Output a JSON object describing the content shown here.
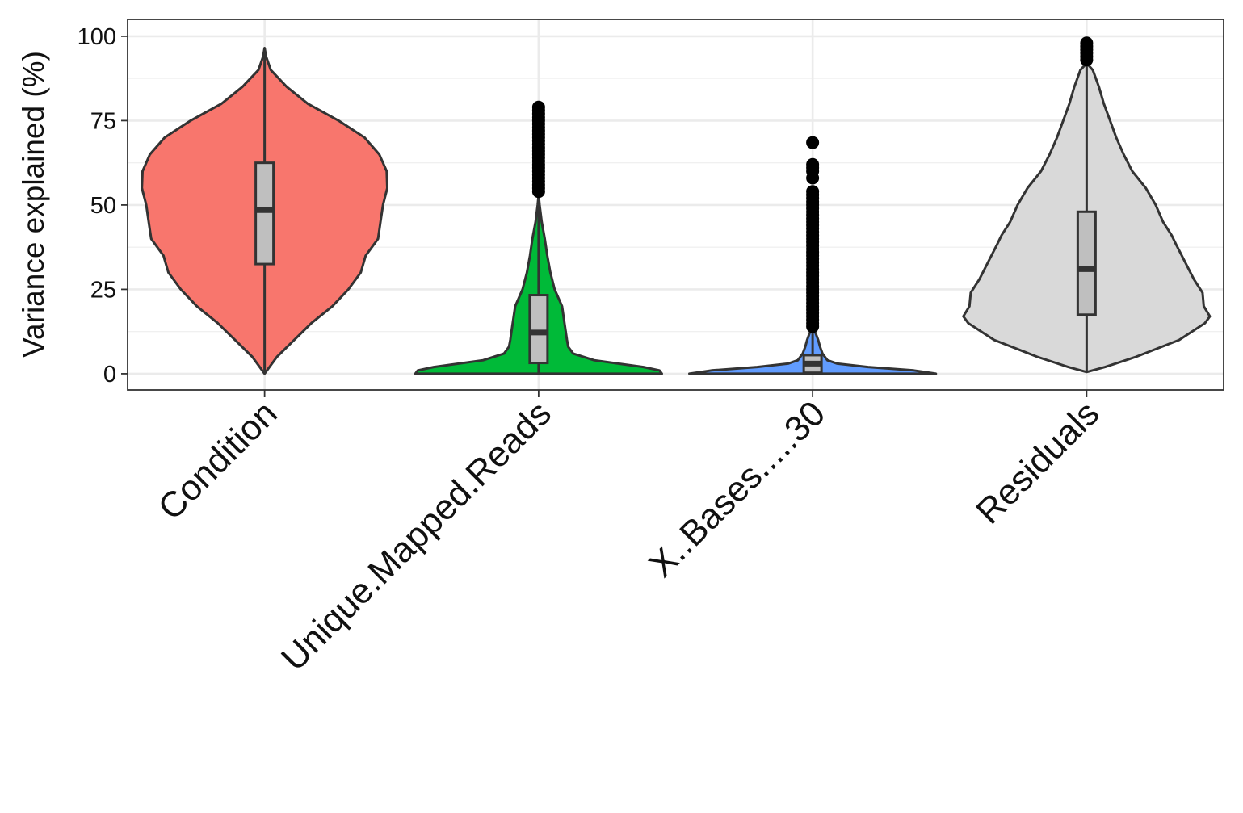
{
  "chart_data": {
    "type": "violin",
    "ylabel": "Variance explained (%)",
    "ylim": [
      -4.8,
      105
    ],
    "yticks": [
      0,
      25,
      50,
      75,
      100
    ],
    "grid": true,
    "legend": "none",
    "categories": [
      {
        "name": "Condition",
        "color": "#F8766D",
        "box": {
          "min": 0,
          "q1": 32.5,
          "median": 48.5,
          "q3": 62.5,
          "max": 96.5
        },
        "density": [
          [
            0,
            0
          ],
          [
            5,
            0.1
          ],
          [
            10,
            0.24
          ],
          [
            15,
            0.38
          ],
          [
            20,
            0.55
          ],
          [
            25,
            0.68
          ],
          [
            30,
            0.78
          ],
          [
            35,
            0.82
          ],
          [
            40,
            0.92
          ],
          [
            45,
            0.94
          ],
          [
            50,
            0.96
          ],
          [
            55,
            0.995
          ],
          [
            60,
            0.99
          ],
          [
            65,
            0.93
          ],
          [
            70,
            0.81
          ],
          [
            75,
            0.6
          ],
          [
            80,
            0.35
          ],
          [
            85,
            0.18
          ],
          [
            90,
            0.05
          ],
          [
            94,
            0.012
          ],
          [
            96.5,
            0
          ]
        ],
        "outliers": []
      },
      {
        "name": "Unique.Mapped.Reads",
        "color": "#00BA38",
        "box": {
          "min": 0,
          "q1": 3.2,
          "median": 12.2,
          "q3": 23.3,
          "max": 53
        },
        "density": [
          [
            0,
            1.0
          ],
          [
            1,
            0.98
          ],
          [
            2,
            0.85
          ],
          [
            4,
            0.45
          ],
          [
            6,
            0.28
          ],
          [
            8,
            0.24
          ],
          [
            10,
            0.23
          ],
          [
            15,
            0.21
          ],
          [
            20,
            0.19
          ],
          [
            25,
            0.13
          ],
          [
            30,
            0.095
          ],
          [
            35,
            0.07
          ],
          [
            40,
            0.05
          ],
          [
            45,
            0.025
          ],
          [
            50,
            0.008
          ],
          [
            53,
            0
          ]
        ],
        "outliers": [
          54,
          55,
          56,
          57,
          58,
          59,
          60,
          61,
          62,
          63,
          64,
          65,
          66,
          67,
          68,
          69,
          70,
          71,
          72,
          73,
          74,
          75,
          76,
          77,
          78,
          79
        ]
      },
      {
        "name": "X..Bases.....30",
        "color": "#619CFF",
        "box": {
          "min": 0,
          "q1": 0.3,
          "median": 3.0,
          "q3": 5.5,
          "max": 13
        },
        "density": [
          [
            0,
            1.0
          ],
          [
            1,
            0.82
          ],
          [
            2,
            0.45
          ],
          [
            3,
            0.2
          ],
          [
            4,
            0.12
          ],
          [
            6,
            0.08
          ],
          [
            8,
            0.06
          ],
          [
            10,
            0.045
          ],
          [
            12,
            0.025
          ],
          [
            13,
            0.01
          ],
          [
            14,
            0
          ]
        ],
        "outliers": [
          14,
          15,
          16,
          17,
          18,
          19,
          20,
          21,
          22,
          23,
          24,
          25,
          26,
          27,
          28,
          29,
          30,
          31,
          32,
          33,
          34,
          35,
          36,
          37,
          38,
          39,
          40,
          41,
          42,
          43,
          44,
          45,
          46,
          47,
          48,
          49,
          50,
          51,
          52,
          53,
          54,
          58,
          60,
          61,
          62,
          68.5
        ]
      },
      {
        "name": "Residuals",
        "color": "#D9D9D9",
        "box": {
          "min": 0.5,
          "q1": 17.5,
          "median": 31,
          "q3": 48,
          "max": 92
        },
        "density": [
          [
            0.5,
            0
          ],
          [
            2,
            0.15
          ],
          [
            5,
            0.4
          ],
          [
            10,
            0.75
          ],
          [
            15,
            0.96
          ],
          [
            17,
            1.0
          ],
          [
            20,
            0.95
          ],
          [
            24,
            0.94
          ],
          [
            28,
            0.87
          ],
          [
            33,
            0.8
          ],
          [
            38,
            0.73
          ],
          [
            41,
            0.69
          ],
          [
            45,
            0.62
          ],
          [
            50,
            0.56
          ],
          [
            55,
            0.48
          ],
          [
            60,
            0.37
          ],
          [
            65,
            0.3
          ],
          [
            70,
            0.24
          ],
          [
            75,
            0.19
          ],
          [
            80,
            0.14
          ],
          [
            85,
            0.1
          ],
          [
            90,
            0.05
          ],
          [
            92,
            0
          ]
        ],
        "outliers": [
          93,
          94,
          95,
          96,
          97,
          98
        ]
      }
    ]
  }
}
